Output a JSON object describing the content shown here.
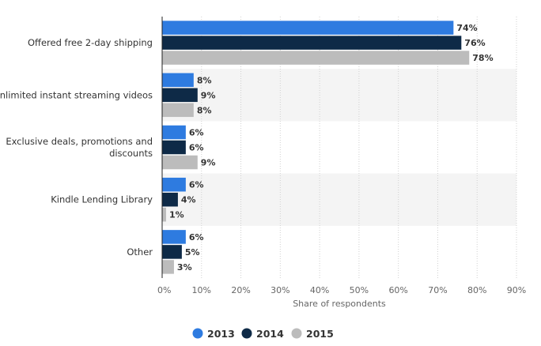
{
  "chart_data": {
    "type": "bar",
    "orientation": "horizontal",
    "categories": [
      [
        "Offered free 2-day shipping"
      ],
      [
        "Unlimited instant streaming videos"
      ],
      [
        "Exclusive deals, promotions and",
        "discounts"
      ],
      [
        "Kindle Lending Library"
      ],
      [
        "Other"
      ]
    ],
    "series": [
      {
        "name": "2013",
        "color": "#2e7be0",
        "values": [
          74,
          8,
          6,
          6,
          6
        ]
      },
      {
        "name": "2014",
        "color": "#0e2a47",
        "values": [
          76,
          9,
          6,
          4,
          5
        ]
      },
      {
        "name": "2015",
        "color": "#bcbcbc",
        "values": [
          78,
          8,
          9,
          1,
          3
        ]
      }
    ],
    "value_suffix": "%",
    "xlim": [
      0,
      90
    ],
    "xticks": [
      "0%",
      "10%",
      "20%",
      "30%",
      "40%",
      "50%",
      "60%",
      "70%",
      "80%",
      "90%"
    ],
    "xlabel": "Share of respondents",
    "ylabel": "",
    "grid": true,
    "legend_position": "bottom-center"
  },
  "colors": {
    "band": "#f4f4f4",
    "grid": "#d0d0d0",
    "axis": "#222222",
    "text": "#333333",
    "tick_text": "#666666"
  }
}
